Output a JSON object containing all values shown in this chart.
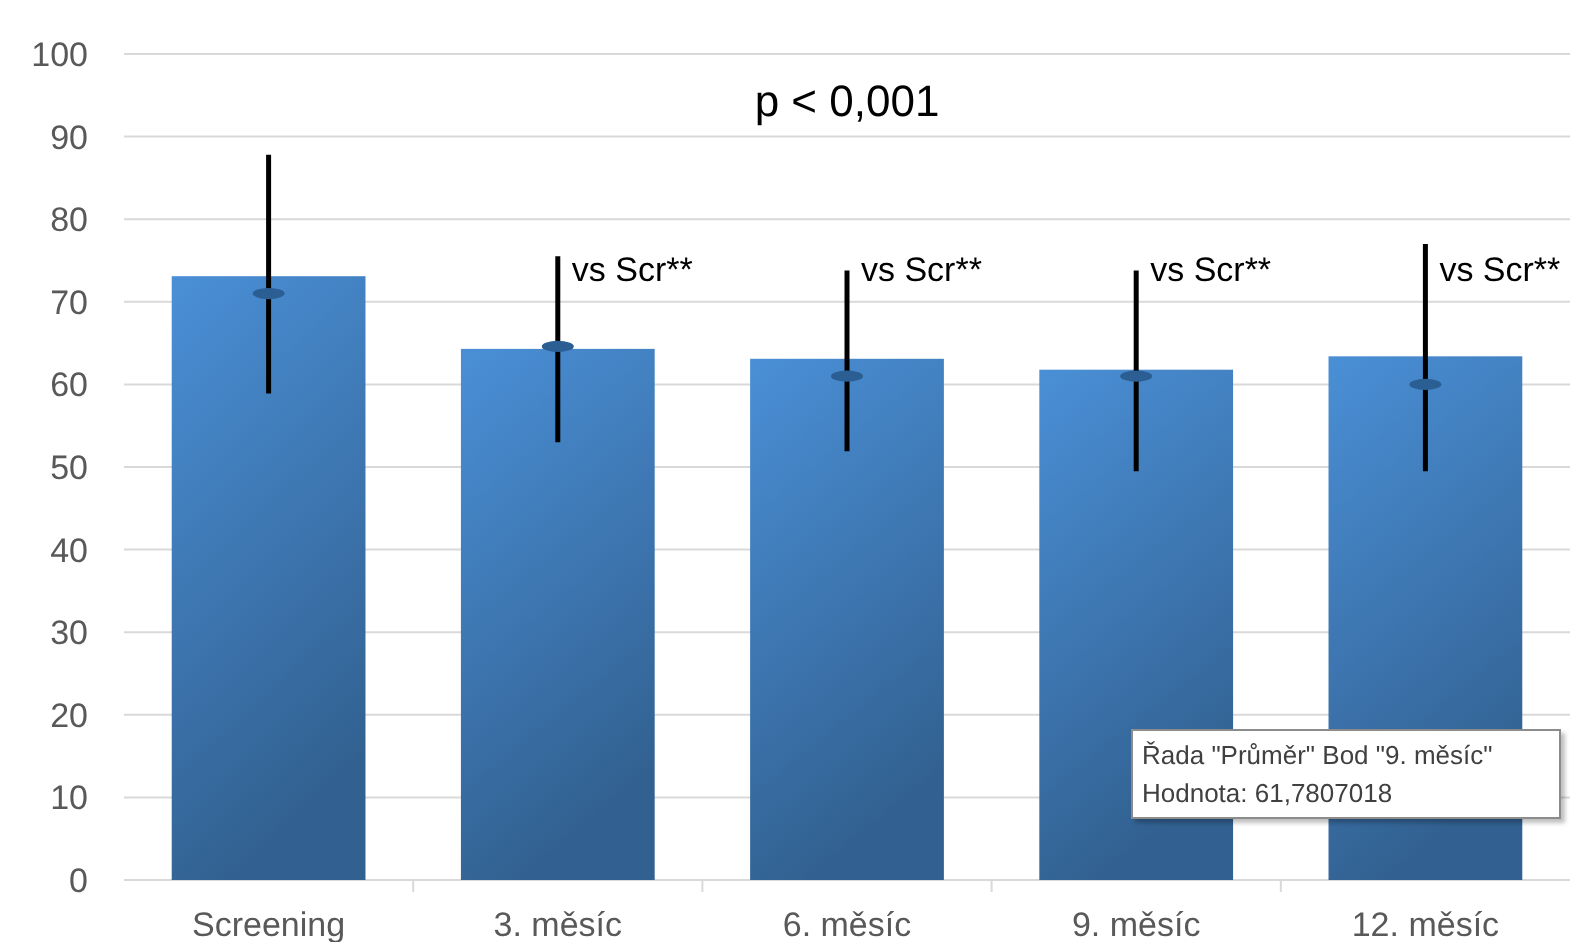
{
  "chart_data": {
    "type": "bar",
    "title": "p < 0,001",
    "categories": [
      "Screening",
      "3. měsíc",
      "6. měsíc",
      "9. měsíc",
      "12. měsíc"
    ],
    "series": [
      {
        "color": "#4a8fd6",
        "values": [
          73.1,
          64.3,
          63.1,
          61.78,
          63.4
        ],
        "errors": [
          [
            58.9,
            87.8
          ],
          [
            53,
            75.5
          ],
          [
            51.9,
            73.8
          ],
          [
            49.5,
            73.8
          ],
          [
            49.5,
            77
          ]
        ]
      },
      {
        "type": "scatter",
        "color": "#2b5f93",
        "x": [
          "Screening",
          "3. měsíc",
          "6. měsíc",
          "9. měsíc",
          "12. měsíc"
        ],
        "values": [
          71,
          64.6,
          61,
          61,
          60
        ]
      }
    ],
    "annotations": [
      {
        "text": "vs Scr**",
        "x": "3. měsíc",
        "y": 72.5
      },
      {
        "text": "vs Scr**",
        "x": "6. měsíc",
        "y": 72.5
      },
      {
        "text": "vs Scr**",
        "x": "9. měsíc",
        "y": 72.5
      },
      {
        "text": "vs Scr**",
        "x": "12. měsíc",
        "y": 72.5
      },
      "Řada \"Průměr\" Bod \"9. měsíc\"\nHodnota: 61,7807018"
    ],
    "ylim": [
      0,
      100
    ],
    "yticks": [
      0,
      10,
      20,
      30,
      40,
      50,
      60,
      70,
      80,
      90,
      100
    ],
    "grid": "y"
  }
}
